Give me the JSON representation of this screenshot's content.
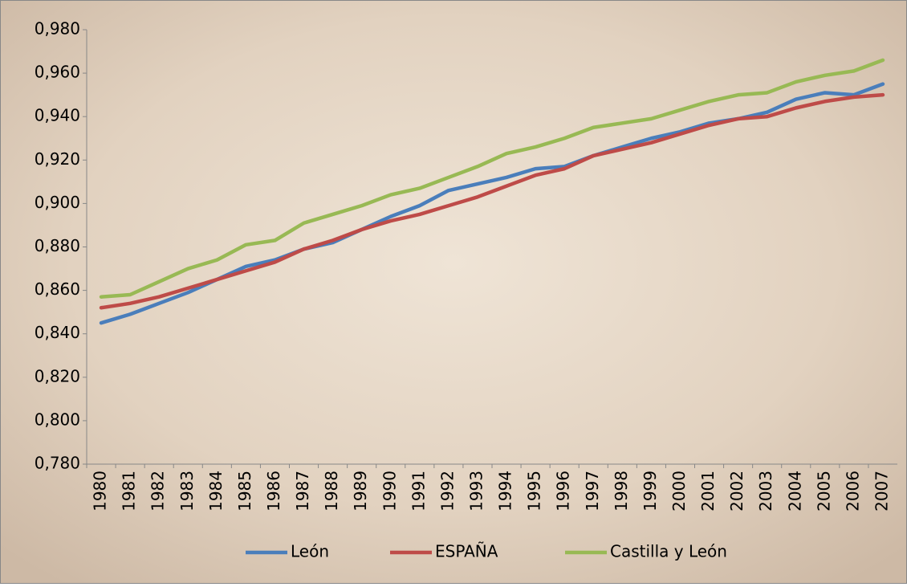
{
  "chart_data": {
    "type": "line",
    "categories": [
      "1980",
      "1981",
      "1982",
      "1983",
      "1984",
      "1985",
      "1986",
      "1987",
      "1988",
      "1989",
      "1990",
      "1991",
      "1992",
      "1993",
      "1994",
      "1995",
      "1996",
      "1997",
      "1998",
      "1999",
      "2000",
      "2001",
      "2002",
      "2003",
      "2004",
      "2005",
      "2006",
      "2007"
    ],
    "series": [
      {
        "name": "León",
        "color": "#4a7ebb",
        "values": [
          0.845,
          0.849,
          0.854,
          0.859,
          0.865,
          0.871,
          0.874,
          0.879,
          0.882,
          0.888,
          0.894,
          0.899,
          0.906,
          0.909,
          0.912,
          0.916,
          0.917,
          0.922,
          0.926,
          0.93,
          0.933,
          0.937,
          0.939,
          0.942,
          0.948,
          0.951,
          0.95,
          0.955
        ]
      },
      {
        "name": "ESPAÑA",
        "color": "#be4b48",
        "values": [
          0.852,
          0.854,
          0.857,
          0.861,
          0.865,
          0.869,
          0.873,
          0.879,
          0.883,
          0.888,
          0.892,
          0.895,
          0.899,
          0.903,
          0.908,
          0.913,
          0.916,
          0.922,
          0.925,
          0.928,
          0.932,
          0.936,
          0.939,
          0.94,
          0.944,
          0.947,
          0.949,
          0.95
        ]
      },
      {
        "name": "Castilla y León",
        "color": "#98b954",
        "values": [
          0.857,
          0.858,
          0.864,
          0.87,
          0.874,
          0.881,
          0.883,
          0.891,
          0.895,
          0.899,
          0.904,
          0.907,
          0.912,
          0.917,
          0.923,
          0.926,
          0.93,
          0.935,
          0.937,
          0.939,
          0.943,
          0.947,
          0.95,
          0.951,
          0.956,
          0.959,
          0.961,
          0.966
        ]
      }
    ],
    "ylim": [
      0.78,
      0.98
    ],
    "yticks": [
      {
        "value": 0.78,
        "label": "0,780"
      },
      {
        "value": 0.8,
        "label": "0,800"
      },
      {
        "value": 0.82,
        "label": "0,820"
      },
      {
        "value": 0.84,
        "label": "0,840"
      },
      {
        "value": 0.86,
        "label": "0,860"
      },
      {
        "value": 0.88,
        "label": "0,880"
      },
      {
        "value": 0.9,
        "label": "0,900"
      },
      {
        "value": 0.92,
        "label": "0,920"
      },
      {
        "value": 0.94,
        "label": "0,940"
      },
      {
        "value": 0.96,
        "label": "0,960"
      },
      {
        "value": 0.98,
        "label": "0,980"
      }
    ],
    "legend": "bottom"
  }
}
